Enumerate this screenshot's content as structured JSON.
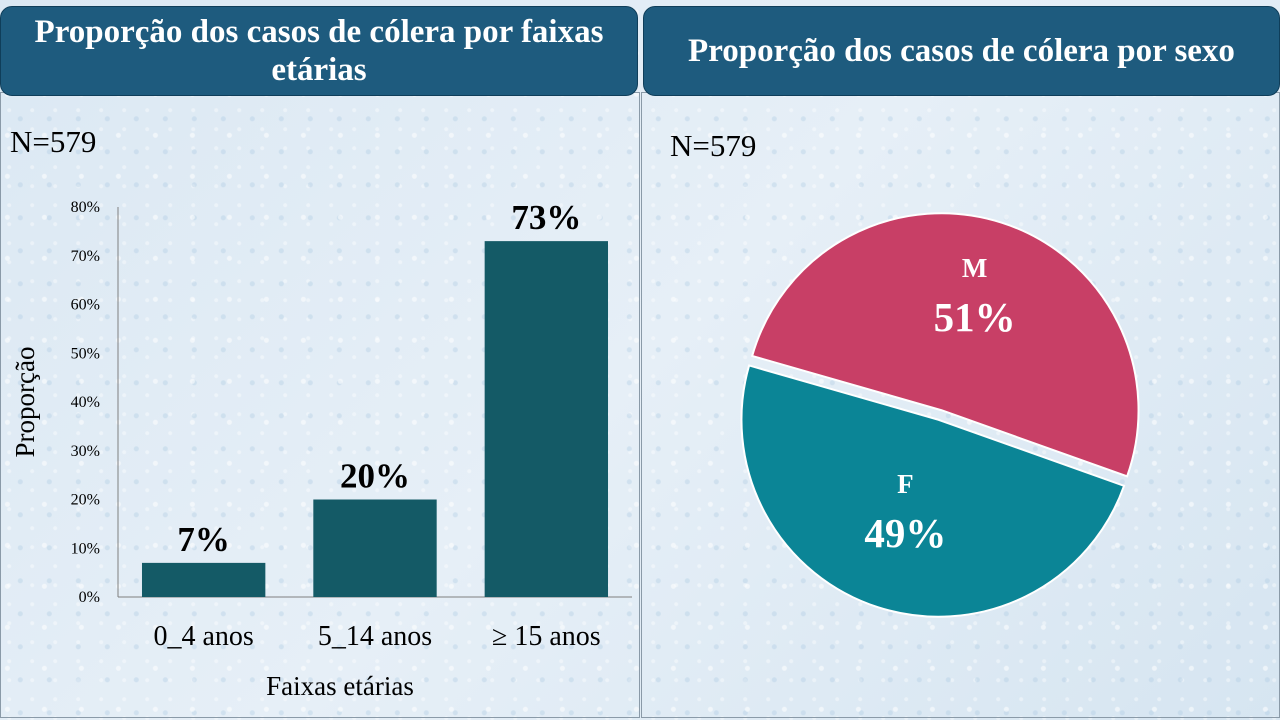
{
  "left_panel": {
    "title": "Proporção dos casos de cólera por faixas etárias",
    "n_label": "N=579"
  },
  "right_panel": {
    "title": "Proporção dos casos de cólera por sexo",
    "n_label": "N=579"
  },
  "chart_data": [
    {
      "type": "bar",
      "title": "Proporção dos casos de cólera por faixas etárias",
      "categories": [
        "0_4 anos",
        "5_14 anos",
        "≥ 15 anos"
      ],
      "values": [
        7,
        20,
        73
      ],
      "data_labels": [
        "7%",
        "20%",
        "73%"
      ],
      "xlabel": "Faixas etárias",
      "ylabel": "Proporção",
      "ylim": [
        0,
        80
      ],
      "yticks": [
        "0%",
        "10%",
        "20%",
        "30%",
        "40%",
        "50%",
        "60%",
        "70%",
        "80%"
      ],
      "bar_color": "#145a66",
      "grid": false
    },
    {
      "type": "pie",
      "title": "Proporção dos casos de cólera por sexo",
      "series": [
        {
          "category": "M",
          "value": 51,
          "label": "51%",
          "color": "#c83f66"
        },
        {
          "category": "F",
          "value": 49,
          "label": "49%",
          "color": "#0b8596"
        }
      ]
    }
  ]
}
